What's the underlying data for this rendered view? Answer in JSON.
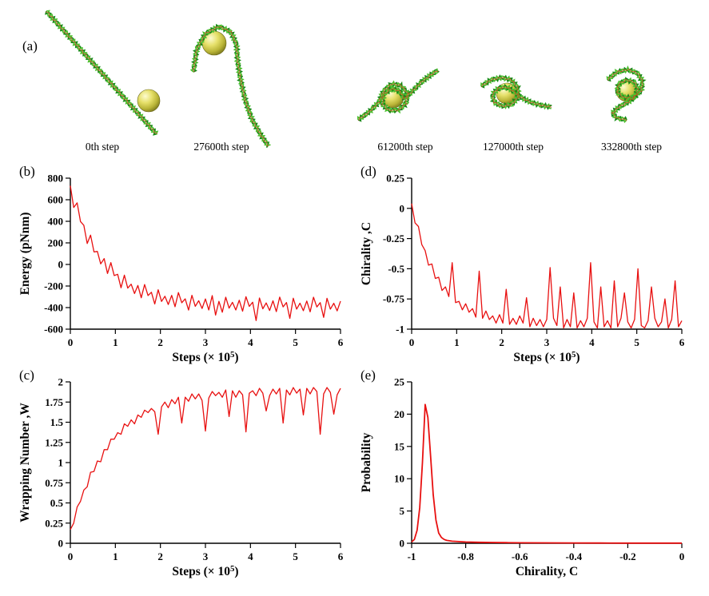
{
  "figure": {
    "panels": {
      "a": "(a)",
      "b": "(b)",
      "c": "(c)",
      "d": "(d)",
      "e": "(e)"
    }
  },
  "snapshots": {
    "items": [
      {
        "label": "0th step"
      },
      {
        "label": "27600th step"
      },
      {
        "label": "61200th step"
      },
      {
        "label": "127000th step"
      },
      {
        "label": "332800th step"
      }
    ]
  },
  "colors": {
    "series": "#e81010",
    "axis": "#000000",
    "sphere": "#d6d23a",
    "dna_dark": "#188a18",
    "dna_light": "#4dbf2e",
    "dna_edge": "#cf4520"
  },
  "chart_data": [
    {
      "id": "b",
      "type": "line",
      "title": "",
      "xlabel": "Steps (× 10⁵)",
      "ylabel": "Energy (pNnm)",
      "xlim": [
        0,
        6
      ],
      "ylim": [
        -600,
        800
      ],
      "xticks": [
        0,
        1,
        2,
        3,
        4,
        5,
        6
      ],
      "yticks": [
        -600,
        -400,
        -200,
        0,
        200,
        400,
        600,
        800
      ],
      "grid": false,
      "legend": null,
      "x_start": 0,
      "x_step": 0.075,
      "y": [
        730,
        528,
        571,
        398,
        362,
        194,
        272,
        116,
        121,
        5,
        54,
        -84,
        17,
        -103,
        -91,
        -216,
        -99,
        -219,
        -183,
        -270,
        -195,
        -309,
        -186,
        -288,
        -258,
        -367,
        -235,
        -343,
        -295,
        -371,
        -287,
        -392,
        -261,
        -355,
        -319,
        -423,
        -286,
        -388,
        -336,
        -408,
        -320,
        -422,
        -289,
        -470,
        -342,
        -443,
        -304,
        -405,
        -351,
        -422,
        -332,
        -433,
        -299,
        -389,
        -350,
        -520,
        -311,
        -411,
        -357,
        -427,
        -337,
        -437,
        -303,
        -393,
        -353,
        -500,
        -313,
        -414,
        -359,
        -429,
        -339,
        -439,
        -304,
        -394,
        -354,
        -490,
        -314,
        -414,
        -360,
        -430,
        -340
      ]
    },
    {
      "id": "c",
      "type": "line",
      "title": "",
      "xlabel": "Steps (× 10⁵)",
      "ylabel": "Wrapping Number ,W",
      "xlim": [
        0,
        6
      ],
      "ylim": [
        0,
        2
      ],
      "xticks": [
        0,
        1,
        2,
        3,
        4,
        5,
        6
      ],
      "yticks": [
        0,
        0.25,
        0.5,
        0.75,
        1,
        1.25,
        1.5,
        1.75,
        2
      ],
      "grid": false,
      "legend": null,
      "x_start": 0,
      "x_step": 0.075,
      "y": [
        0.17,
        0.25,
        0.45,
        0.52,
        0.66,
        0.7,
        0.88,
        0.89,
        1.02,
        1.01,
        1.16,
        1.16,
        1.29,
        1.29,
        1.37,
        1.35,
        1.48,
        1.45,
        1.53,
        1.48,
        1.59,
        1.56,
        1.65,
        1.62,
        1.67,
        1.63,
        1.35,
        1.69,
        1.75,
        1.68,
        1.78,
        1.73,
        1.81,
        1.49,
        1.81,
        1.76,
        1.85,
        1.79,
        1.85,
        1.77,
        1.39,
        1.8,
        1.88,
        1.83,
        1.87,
        1.81,
        1.9,
        1.57,
        1.89,
        1.81,
        1.89,
        1.84,
        1.38,
        1.86,
        1.89,
        1.83,
        1.92,
        1.86,
        1.64,
        1.83,
        1.91,
        1.85,
        1.92,
        1.49,
        1.9,
        1.84,
        1.93,
        1.86,
        1.91,
        1.59,
        1.92,
        1.85,
        1.93,
        1.88,
        1.35,
        1.85,
        1.93,
        1.87,
        1.6,
        1.84,
        1.92
      ]
    },
    {
      "id": "d",
      "type": "line",
      "title": "",
      "xlabel": "Steps (× 10⁵)",
      "ylabel": "Chirality ,C",
      "xlim": [
        0,
        6
      ],
      "ylim": [
        -1,
        0.25
      ],
      "xticks": [
        0,
        1,
        2,
        3,
        4,
        5,
        6
      ],
      "yticks": [
        -1,
        -0.75,
        -0.5,
        -0.25,
        0,
        0.25
      ],
      "grid": false,
      "legend": null,
      "x_start": 0,
      "x_step": 0.075,
      "y": [
        0.04,
        -0.12,
        -0.15,
        -0.3,
        -0.35,
        -0.47,
        -0.46,
        -0.58,
        -0.57,
        -0.68,
        -0.65,
        -0.73,
        -0.45,
        -0.78,
        -0.77,
        -0.84,
        -0.79,
        -0.86,
        -0.83,
        -0.9,
        -0.52,
        -0.91,
        -0.85,
        -0.92,
        -0.89,
        -0.95,
        -0.88,
        -0.95,
        -0.67,
        -0.96,
        -0.91,
        -0.96,
        -0.89,
        -0.95,
        -0.74,
        -0.98,
        -0.91,
        -0.97,
        -0.92,
        -0.98,
        -0.92,
        -0.49,
        -0.91,
        -0.97,
        -0.65,
        -0.99,
        -0.92,
        -0.98,
        -0.7,
        -0.99,
        -0.93,
        -0.98,
        -0.91,
        -0.45,
        -0.94,
        -0.99,
        -0.65,
        -0.98,
        -0.93,
        -0.99,
        -0.6,
        -0.98,
        -0.91,
        -0.7,
        -0.94,
        -0.99,
        -0.92,
        -0.5,
        -0.97,
        -0.99,
        -0.93,
        -0.65,
        -0.91,
        -0.98,
        -0.94,
        -0.75,
        -0.99,
        -0.92,
        -0.6,
        -0.98,
        -0.93
      ]
    },
    {
      "id": "e",
      "type": "line",
      "title": "",
      "xlabel": "Chirality, C",
      "ylabel": "Probability",
      "xlim": [
        -1,
        0
      ],
      "ylim": [
        0,
        25
      ],
      "xticks": [
        -1,
        -0.8,
        -0.6,
        -0.4,
        -0.2,
        0
      ],
      "yticks": [
        0,
        5,
        10,
        15,
        20,
        25
      ],
      "grid": false,
      "legend": null,
      "x": [
        -1,
        -0.99,
        -0.98,
        -0.97,
        -0.96,
        -0.95,
        -0.94,
        -0.93,
        -0.92,
        -0.91,
        -0.9,
        -0.89,
        -0.88,
        -0.87,
        -0.86,
        -0.85,
        -0.8,
        -0.75,
        -0.7,
        -0.65,
        -0.6,
        -0.5,
        -0.4,
        -0.3,
        -0.2,
        -0.1,
        0
      ],
      "y": [
        0.2,
        0.6,
        2.0,
        5.5,
        12.5,
        21.5,
        19.5,
        13.5,
        7.5,
        3.6,
        1.6,
        0.9,
        0.6,
        0.45,
        0.38,
        0.32,
        0.2,
        0.15,
        0.12,
        0.1,
        0.08,
        0.06,
        0.05,
        0.04,
        0.03,
        0.02,
        0.02
      ]
    }
  ]
}
